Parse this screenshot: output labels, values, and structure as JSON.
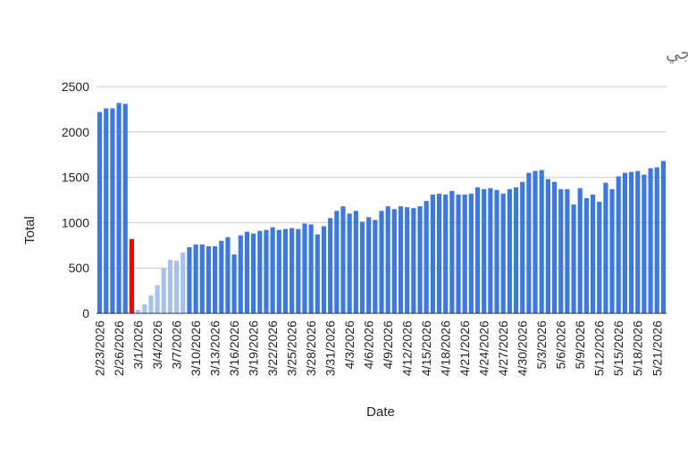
{
  "chart_data": {
    "type": "bar",
    "title": "إجمالي الرحلات اليومية - الطيران الخليجي",
    "xlabel": "Date",
    "ylabel": "Total",
    "ylim": [
      0,
      2500
    ],
    "yticks": [
      0,
      500,
      1000,
      1500,
      2000,
      2500
    ],
    "grid": true,
    "legend": "none",
    "colors": {
      "normal": "#3b78e7",
      "highlight": "#ff0000",
      "faded": "#a7c1ee",
      "grid": "#cccccc",
      "axis": "#333333"
    },
    "x_tick_labels": [
      "2/23/2026",
      "2/26/2026",
      "3/1/2026",
      "3/4/2026",
      "3/7/2026",
      "3/10/2026",
      "3/13/2026",
      "3/16/2026",
      "3/19/2026",
      "3/22/2026",
      "3/25/2026",
      "3/28/2026",
      "3/31/2026",
      "4/3/2026",
      "4/6/2026",
      "4/9/2026",
      "4/12/2026",
      "4/15/2026",
      "4/18/2026",
      "4/21/2026",
      "4/24/2026",
      "4/27/2026",
      "4/30/2026",
      "5/3/2026",
      "5/6/2026",
      "5/9/2026",
      "5/12/2026",
      "5/15/2026",
      "5/18/2026",
      "5/21/2026"
    ],
    "categories": [
      "2/23/2026",
      "2/24/2026",
      "2/25/2026",
      "2/26/2026",
      "2/27/2026",
      "2/28/2026",
      "3/1/2026",
      "3/2/2026",
      "3/3/2026",
      "3/4/2026",
      "3/5/2026",
      "3/6/2026",
      "3/7/2026",
      "3/8/2026",
      "3/9/2026",
      "3/10/2026",
      "3/11/2026",
      "3/12/2026",
      "3/13/2026",
      "3/14/2026",
      "3/15/2026",
      "3/16/2026",
      "3/17/2026",
      "3/18/2026",
      "3/19/2026",
      "3/20/2026",
      "3/21/2026",
      "3/22/2026",
      "3/23/2026",
      "3/24/2026",
      "3/25/2026",
      "3/26/2026",
      "3/27/2026",
      "3/28/2026",
      "3/29/2026",
      "3/30/2026",
      "3/31/2026",
      "4/1/2026",
      "4/2/2026",
      "4/3/2026",
      "4/4/2026",
      "4/5/2026",
      "4/6/2026",
      "4/7/2026",
      "4/8/2026",
      "4/9/2026",
      "4/10/2026",
      "4/11/2026",
      "4/12/2026",
      "4/13/2026",
      "4/14/2026",
      "4/15/2026",
      "4/16/2026",
      "4/17/2026",
      "4/18/2026",
      "4/19/2026",
      "4/20/2026",
      "4/21/2026",
      "4/22/2026",
      "4/23/2026",
      "4/24/2026",
      "4/25/2026",
      "4/26/2026",
      "4/27/2026",
      "4/28/2026",
      "4/29/2026",
      "4/30/2026",
      "5/1/2026",
      "5/2/2026",
      "5/3/2026",
      "5/4/2026",
      "5/5/2026",
      "5/6/2026",
      "5/7/2026",
      "5/8/2026",
      "5/9/2026",
      "5/10/2026",
      "5/11/2026",
      "5/12/2026",
      "5/13/2026",
      "5/14/2026",
      "5/15/2026",
      "5/16/2026",
      "5/17/2026",
      "5/18/2026",
      "5/19/2026",
      "5/20/2026",
      "5/21/2026",
      "5/22/2026"
    ],
    "series": [
      {
        "values": [
          2220,
          2260,
          2260,
          2320,
          2310,
          820,
          40,
          100,
          200,
          310,
          500,
          590,
          580,
          670,
          730,
          760,
          760,
          740,
          740,
          800,
          840,
          650,
          860,
          900,
          880,
          910,
          920,
          950,
          920,
          930,
          940,
          930,
          990,
          980,
          870,
          960,
          1050,
          1130,
          1180,
          1100,
          1130,
          1010,
          1060,
          1030,
          1130,
          1180,
          1150,
          1180,
          1170,
          1160,
          1180,
          1240,
          1310,
          1320,
          1310,
          1350,
          1310,
          1310,
          1320,
          1390,
          1370,
          1380,
          1360,
          1320,
          1370,
          1390,
          1450,
          1550,
          1570,
          1580,
          1480,
          1450,
          1370,
          1370,
          1200,
          1380,
          1270,
          1310,
          1230,
          1440,
          1370,
          1510,
          1550,
          1560,
          1570,
          1530,
          1600,
          1610,
          1680
        ],
        "status": [
          "normal",
          "normal",
          "normal",
          "normal",
          "normal",
          "highlight",
          "faded",
          "faded",
          "faded",
          "faded",
          "faded",
          "faded",
          "faded",
          "faded",
          "normal",
          "normal",
          "normal",
          "normal",
          "normal",
          "normal",
          "normal",
          "normal",
          "normal",
          "normal",
          "normal",
          "normal",
          "normal",
          "normal",
          "normal",
          "normal",
          "normal",
          "normal",
          "normal",
          "normal",
          "normal",
          "normal",
          "normal",
          "normal",
          "normal",
          "normal",
          "normal",
          "normal",
          "normal",
          "normal",
          "normal",
          "normal",
          "normal",
          "normal",
          "normal",
          "normal",
          "normal",
          "normal",
          "normal",
          "normal",
          "normal",
          "normal",
          "normal",
          "normal",
          "normal",
          "normal",
          "normal",
          "normal",
          "normal",
          "normal",
          "normal",
          "normal",
          "normal",
          "normal",
          "normal",
          "normal",
          "normal",
          "normal",
          "normal",
          "normal",
          "normal",
          "normal",
          "normal",
          "normal",
          "normal",
          "normal",
          "normal",
          "normal",
          "normal",
          "normal",
          "normal",
          "normal",
          "normal",
          "normal",
          "normal"
        ]
      }
    ]
  }
}
